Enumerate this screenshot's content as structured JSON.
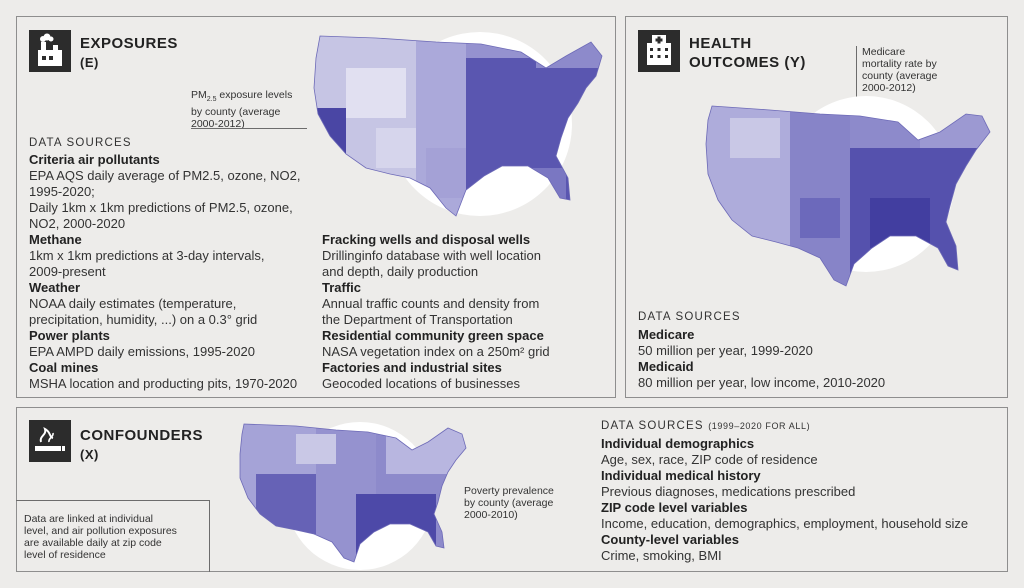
{
  "exposures": {
    "title": "EXPOSURES",
    "subtitle": "(E)",
    "icon": "factory-icon",
    "map_caption": {
      "line1_pre": "PM",
      "line1_sub": "2.5",
      "line1_post": " exposure levels",
      "line2": "by county (average",
      "line3": "2000-2012)"
    },
    "data_sources_label": "DATA SOURCES",
    "left_column": [
      {
        "category": "Criteria air pollutants",
        "lines": [
          "EPA AQS daily average of PM2.5, ozone, NO2,",
          "1995-2020;",
          "Daily 1km x 1km predictions of PM2.5, ozone,",
          "NO2, 2000-2020"
        ]
      },
      {
        "category": "Methane",
        "lines": [
          "1km x 1km predictions at 3-day intervals,",
          "2009-present"
        ]
      },
      {
        "category": "Weather",
        "lines": [
          "NOAA daily estimates (temperature,",
          "precipitation, humidity, ...) on a 0.3° grid"
        ]
      },
      {
        "category": "Power plants",
        "lines": [
          "EPA AMPD daily emissions, 1995-2020"
        ]
      },
      {
        "category": "Coal mines",
        "lines": [
          "MSHA location and producting pits, 1970-2020"
        ]
      }
    ],
    "right_column": [
      {
        "category": "Fracking wells and disposal wells",
        "lines": [
          "Drillinginfo database with well location",
          "and depth, daily production"
        ]
      },
      {
        "category": "Traffic",
        "lines": [
          "Annual traffic counts and density from",
          "the Department of Transportation"
        ]
      },
      {
        "category": "Residential community green space",
        "lines": [
          "NASA vegetation index on a 250m² grid"
        ]
      },
      {
        "category": "Factories and industrial sites",
        "lines": [
          "Geocoded locations of businesses"
        ]
      }
    ]
  },
  "outcomes": {
    "title_line1": "HEALTH",
    "title_line2": "OUTCOMES (Y)",
    "icon": "hospital-icon",
    "map_caption": [
      "Medicare",
      "mortality rate by",
      "county (average",
      "2000-2012)"
    ],
    "data_sources_label": "DATA SOURCES",
    "items": [
      {
        "category": "Medicare",
        "lines": [
          "50 million per year, 1999-2020"
        ]
      },
      {
        "category": "Medicaid",
        "lines": [
          "80 million per year, low income, 2010-2020"
        ]
      }
    ]
  },
  "confounders": {
    "title": "CONFOUNDERS",
    "subtitle": "(X)",
    "icon": "smoking-icon",
    "note": [
      "Data are linked at individual",
      "level, and air pollution exposures",
      "are available daily at zip code",
      "level of residence"
    ],
    "map_caption": [
      "Poverty prevalence",
      "by county (average",
      "2000-2010)"
    ],
    "data_sources_label": "DATA SOURCES",
    "data_sources_suffix": "(1999–2020 FOR ALL)",
    "items": [
      {
        "category": "Individual demographics",
        "lines": [
          "Age, sex, race, ZIP code of residence"
        ]
      },
      {
        "category": "Individual medical history",
        "lines": [
          "Previous diagnoses, medications prescribed"
        ]
      },
      {
        "category": "ZIP code level variables",
        "lines": [
          "Income, education, demographics, employment, household size"
        ]
      },
      {
        "category": "County-level variables",
        "lines": [
          "Crime, smoking, BMI"
        ]
      }
    ]
  },
  "colors": {
    "map_light": "#c6c5e4",
    "map_mid": "#8d8acb",
    "map_dark": "#5551ad",
    "circle": "#ffffff",
    "icon_bg": "#2c2c2c"
  }
}
